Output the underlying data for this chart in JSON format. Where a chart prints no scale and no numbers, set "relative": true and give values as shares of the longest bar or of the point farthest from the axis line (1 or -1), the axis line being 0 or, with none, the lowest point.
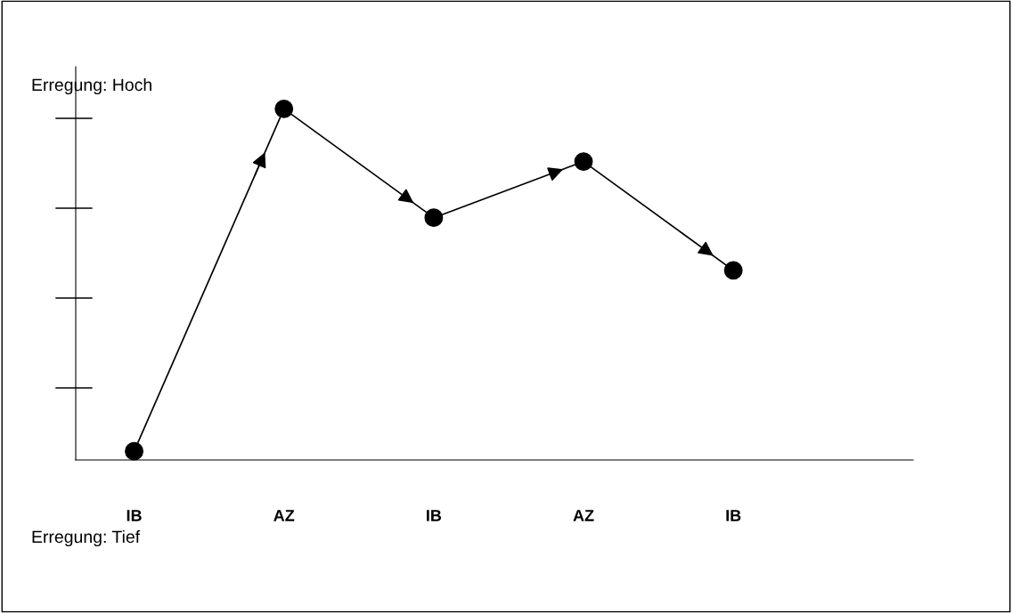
{
  "chart_data": {
    "type": "line",
    "relative": true,
    "categories": [
      "IB",
      "AZ",
      "IB",
      "AZ",
      "IB"
    ],
    "series": [
      {
        "color": "#000000",
        "values": [
          0.025,
          1,
          0.69,
          0.85,
          0.54
        ]
      }
    ],
    "marker": "circle",
    "line_style": "solid",
    "grid": false,
    "legend": false,
    "annotations": [
      "Erregung: Hoch",
      "Erregung: Tief"
    ]
  }
}
